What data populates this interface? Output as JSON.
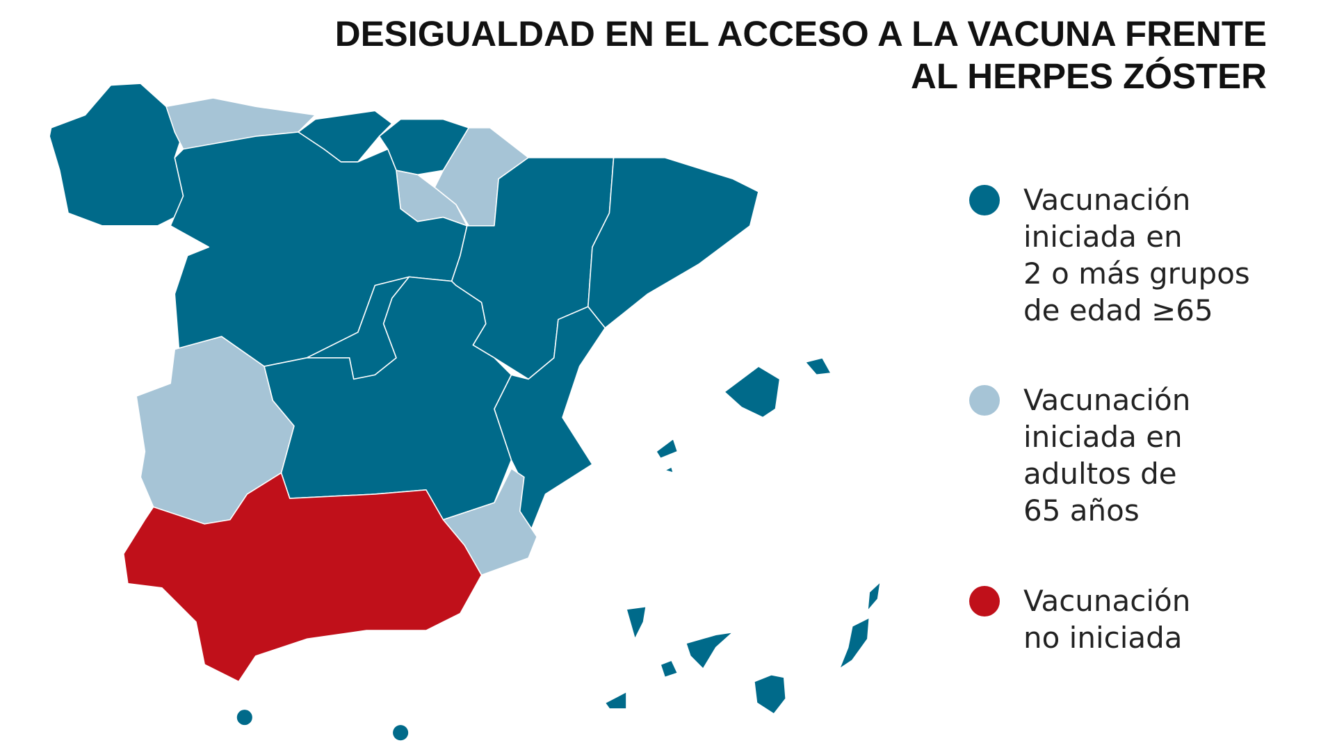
{
  "header": {
    "title": [
      "DESIGUALDAD EN EL ACCESO A LA VACUNA FRENTE",
      "AL HERPES ZÓSTER"
    ]
  },
  "legend": [
    {
      "color": "#006a8a",
      "label": [
        "Vacunación",
        "iniciada en",
        "2 o más grupos",
        "de edad ≥65"
      ]
    },
    {
      "color": "#a6c4d6",
      "label": [
        "Vacunación",
        "iniciada en",
        "adultos de",
        "65 años"
      ]
    },
    {
      "color": "#c0101a",
      "label": [
        "Vacunación",
        "no iniciada"
      ]
    }
  ]
}
